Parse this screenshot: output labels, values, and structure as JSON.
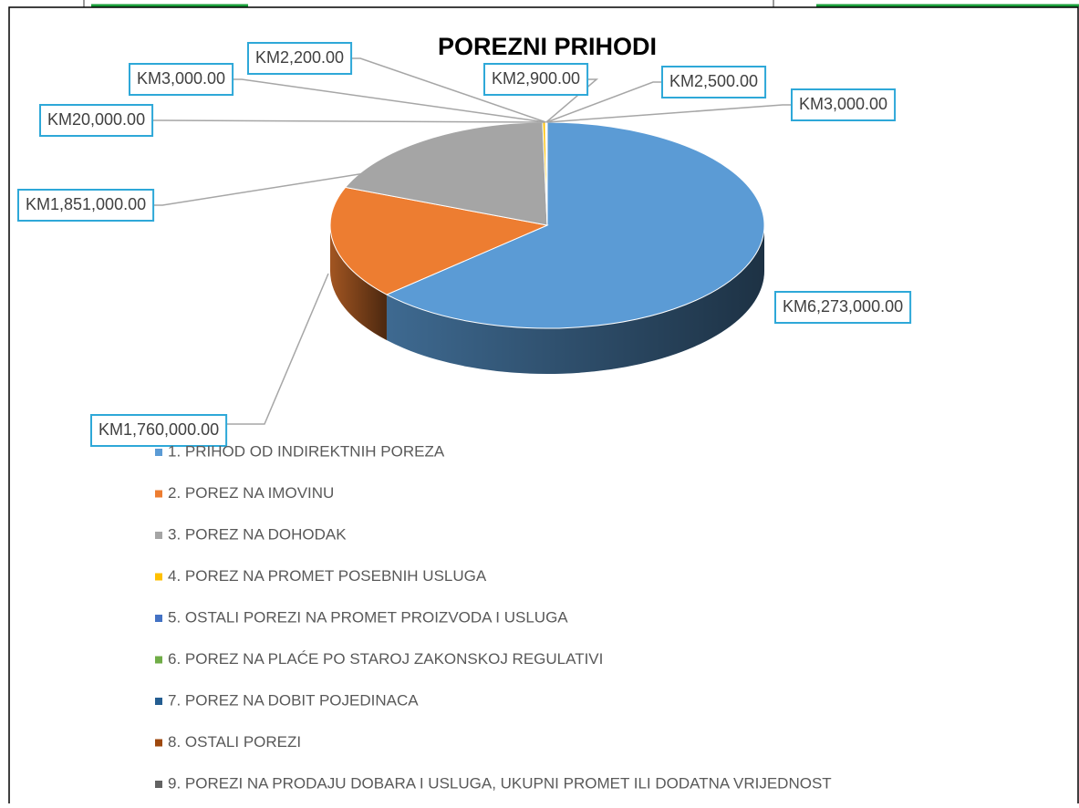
{
  "chart_data": {
    "type": "pie",
    "title": "POREZNI PRIHODI",
    "categories": [
      "1. PRIHOD OD INDIREKTNIH POREZA",
      "2. POREZ NA IMOVINU",
      "3. POREZ NA DOHODAK",
      "4. POREZ NA PROMET POSEBNIH USLUGA",
      "5. OSTALI POREZI NA PROMET PROIZVODA I USLUGA",
      "6. POREZ NA PLAĆE PO STAROJ ZAKONSKOJ REGULATIVI",
      "7. POREZ NA DOBIT POJEDINACA",
      "8. OSTALI POREZI",
      "9. POREZI NA PRODAJU DOBARA I USLUGA, UKUPNI PROMET ILI DODATNA VRIJEDNOST"
    ],
    "values": [
      6273000,
      1760000,
      1851000,
      20000,
      3000,
      2200,
      2900,
      2500,
      3000
    ],
    "value_labels": [
      "KM6,273,000.00",
      "KM1,760,000.00",
      "KM1,851,000.00",
      "KM20,000.00",
      "KM3,000.00",
      "KM2,200.00",
      "KM2,900.00",
      "KM2,500.00",
      "KM3,000.00"
    ],
    "colors": [
      "#5b9bd5",
      "#ed7d31",
      "#a5a5a5",
      "#ffc000",
      "#4472c4",
      "#70ad47",
      "#255e91",
      "#9e480e",
      "#636363"
    ],
    "legend": "bottom"
  }
}
